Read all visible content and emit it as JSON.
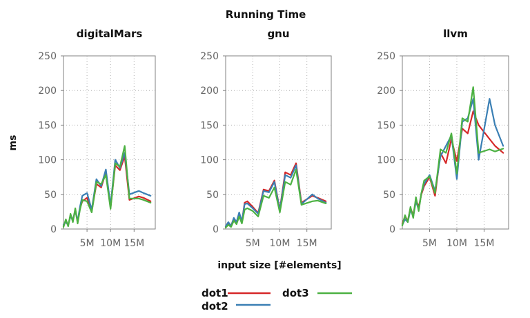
{
  "chart_data": {
    "type": "line",
    "title": "Running Time",
    "xlabel": "input size [#elements]",
    "ylabel": "ms",
    "ylim": [
      0,
      250
    ],
    "xlim": [
      0,
      19500000
    ],
    "yticks": [
      0,
      50,
      100,
      150,
      200,
      250
    ],
    "xticks": [
      5000000,
      10000000,
      15000000
    ],
    "xtick_labels": [
      "5M",
      "10M",
      "15M"
    ],
    "grid": true,
    "legend_position": "bottom-center",
    "series_styles": [
      {
        "name": "dot1",
        "color": "#d62728"
      },
      {
        "name": "dot2",
        "color": "#3a7fb4"
      },
      {
        "name": "dot3",
        "color": "#4cb142"
      }
    ],
    "panels": [
      {
        "title": "digitalMars",
        "x": [
          0,
          500000,
          1000000,
          1500000,
          2000000,
          2500000,
          3000000,
          3500000,
          4000000,
          5000000,
          6000000,
          7000000,
          8000000,
          9000000,
          10000000,
          11000000,
          12000000,
          13000000,
          14000000,
          16000000,
          17000000,
          18500000
        ],
        "series": [
          {
            "name": "dot1",
            "values": [
              4,
              12,
              5,
              20,
              12,
              28,
              10,
              30,
              40,
              45,
              26,
              65,
              60,
              82,
              31,
              92,
              85,
              105,
              42,
              47,
              45,
              40
            ]
          },
          {
            "name": "dot2",
            "values": [
              6,
              10,
              6,
              18,
              14,
              26,
              12,
              32,
              48,
              52,
              28,
              72,
              62,
              86,
              34,
              100,
              88,
              110,
              50,
              55,
              52,
              48
            ]
          },
          {
            "name": "dot3",
            "values": [
              3,
              14,
              4,
              22,
              10,
              30,
              8,
              28,
              42,
              40,
              24,
              68,
              65,
              78,
              29,
              95,
              90,
              120,
              44,
              44,
              42,
              38
            ]
          }
        ]
      },
      {
        "title": "gnu",
        "x": [
          0,
          500000,
          1000000,
          1500000,
          2000000,
          2500000,
          3000000,
          3500000,
          4000000,
          5000000,
          6000000,
          7000000,
          8000000,
          9000000,
          10000000,
          11000000,
          12000000,
          13000000,
          14000000,
          16000000,
          17000000,
          18500000
        ],
        "series": [
          {
            "name": "dot1",
            "values": [
              3,
              8,
              5,
              15,
              8,
              22,
              10,
              38,
              40,
              32,
              23,
              57,
              55,
              70,
              28,
              82,
              78,
              95,
              38,
              48,
              45,
              40
            ]
          },
          {
            "name": "dot2",
            "values": [
              4,
              10,
              4,
              16,
              10,
              24,
              11,
              36,
              37,
              30,
              22,
              55,
              53,
              68,
              27,
              78,
              74,
              92,
              36,
              50,
              44,
              38
            ]
          },
          {
            "name": "dot3",
            "values": [
              2,
              6,
              3,
              12,
              7,
              18,
              8,
              28,
              30,
              26,
              18,
              48,
              45,
              60,
              24,
              68,
              64,
              86,
              35,
              40,
              41,
              37
            ]
          }
        ]
      },
      {
        "title": "llvm",
        "x": [
          0,
          500000,
          1000000,
          1500000,
          2000000,
          2500000,
          3000000,
          3500000,
          4000000,
          5000000,
          6000000,
          7000000,
          8000000,
          9000000,
          10000000,
          11000000,
          12000000,
          13000000,
          14000000,
          16000000,
          17000000,
          18500000
        ],
        "series": [
          {
            "name": "dot1",
            "values": [
              8,
              18,
              12,
              30,
              20,
              42,
              32,
              50,
              62,
              75,
              48,
              110,
              95,
              130,
              98,
              145,
              138,
              170,
              150,
              130,
              120,
              110
            ]
          },
          {
            "name": "dot2",
            "values": [
              6,
              14,
              10,
              28,
              18,
              40,
              28,
              52,
              65,
              78,
              55,
              105,
              120,
              135,
              72,
              155,
              160,
              188,
              100,
              188,
              150,
              120
            ]
          },
          {
            "name": "dot3",
            "values": [
              5,
              20,
              10,
              32,
              16,
              46,
              26,
              52,
              70,
              76,
              52,
              115,
              110,
              138,
              80,
              160,
              155,
              205,
              110,
              115,
              112,
              116
            ]
          }
        ]
      }
    ]
  }
}
